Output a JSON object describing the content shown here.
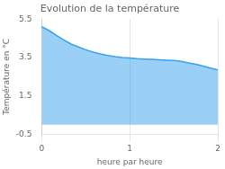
{
  "chart_data": {
    "type": "area",
    "title": "Evolution de la température",
    "xlabel": "heure par heure",
    "ylabel": "Température en °C",
    "x": [
      0.0,
      0.083,
      0.167,
      0.25,
      0.333,
      0.417,
      0.5,
      0.583,
      0.667,
      0.75,
      0.833,
      0.917,
      1.0,
      1.083,
      1.167,
      1.25,
      1.333,
      1.417,
      1.5,
      1.583,
      1.667,
      1.75,
      1.833,
      1.917,
      2.0
    ],
    "values": [
      5.1,
      4.9,
      4.65,
      4.42,
      4.2,
      4.05,
      3.9,
      3.78,
      3.68,
      3.6,
      3.54,
      3.5,
      3.47,
      3.44,
      3.42,
      3.4,
      3.38,
      3.36,
      3.34,
      3.3,
      3.22,
      3.15,
      3.05,
      2.95,
      2.85
    ],
    "xlim": [
      0,
      2
    ],
    "ylim": [
      -0.5,
      5.5
    ],
    "xticks": [
      0,
      1,
      2
    ],
    "yticks": [
      -0.5,
      1.5,
      3.5,
      5.5
    ],
    "grid": "x"
  }
}
